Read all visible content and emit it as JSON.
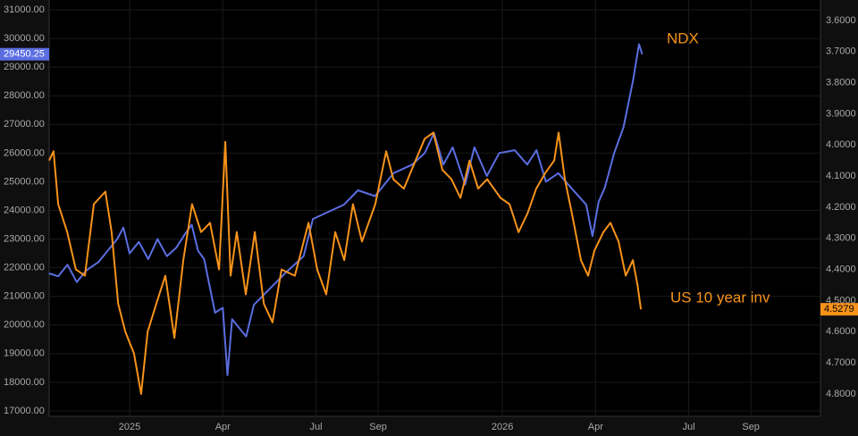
{
  "chart_data": {
    "type": "line",
    "annotations": [
      "NDX",
      "US 10 year inv"
    ],
    "xlim": [
      -2.59,
      22.24
    ],
    "xticks": [
      {
        "value": 0,
        "label": "2025"
      },
      {
        "value": 3,
        "label": "Apr"
      },
      {
        "value": 6,
        "label": "Jul"
      },
      {
        "value": 8,
        "label": "Sep"
      },
      {
        "value": 12,
        "label": "2026"
      },
      {
        "value": 15,
        "label": "Apr"
      },
      {
        "value": 18,
        "label": "Jul"
      },
      {
        "value": 20,
        "label": "Sep"
      }
    ],
    "ylim": [
      16812,
      31343
    ],
    "yticks": [
      {
        "value": 17000,
        "label": "17000.00"
      },
      {
        "value": 18000,
        "label": "18000.00"
      },
      {
        "value": 19000,
        "label": "19000.00"
      },
      {
        "value": 20000,
        "label": "20000.00"
      },
      {
        "value": 21000,
        "label": "21000.00"
      },
      {
        "value": 22000,
        "label": "22000.00"
      },
      {
        "value": 23000,
        "label": "23000.00"
      },
      {
        "value": 24000,
        "label": "24000.00"
      },
      {
        "value": 25000,
        "label": "25000.00"
      },
      {
        "value": 26000,
        "label": "26000.00"
      },
      {
        "value": 27000,
        "label": "27000.00"
      },
      {
        "value": 28000,
        "label": "28000.00"
      },
      {
        "value": 29000,
        "label": "29000.00"
      },
      {
        "value": 30000,
        "label": "30000.00"
      },
      {
        "value": 31000,
        "label": "31000.00"
      }
    ],
    "y2lim": [
      4.872,
      3.534
    ],
    "y2ticks": [
      {
        "value": 3.6,
        "label": "3.6000"
      },
      {
        "value": 3.7,
        "label": "3.7000"
      },
      {
        "value": 3.8,
        "label": "3.8000"
      },
      {
        "value": 3.9,
        "label": "3.9000"
      },
      {
        "value": 4.0,
        "label": "4.0000"
      },
      {
        "value": 4.1,
        "label": "4.1000"
      },
      {
        "value": 4.2,
        "label": "4.2000"
      },
      {
        "value": 4.3,
        "label": "4.3000"
      },
      {
        "value": 4.4,
        "label": "4.4000"
      },
      {
        "value": 4.5,
        "label": "4.5000"
      },
      {
        "value": 4.6,
        "label": "4.6000"
      },
      {
        "value": 4.7,
        "label": "4.7000"
      },
      {
        "value": 4.8,
        "label": "4.8000"
      }
    ],
    "grid": true,
    "series": [
      {
        "name": "NDX",
        "color": "#5b6ee1",
        "last_value": 29450.25,
        "x": [
          -2.6,
          -2.3,
          -2.0,
          -1.7,
          -1.4,
          -1.0,
          -0.7,
          -0.4,
          -0.2,
          0.0,
          0.3,
          0.6,
          0.9,
          1.2,
          1.5,
          1.8,
          2.0,
          2.2,
          2.4,
          2.75,
          3.0,
          3.15,
          3.3,
          3.75,
          4.0,
          4.45,
          5.0,
          5.6,
          5.9,
          6.5,
          6.9,
          7.35,
          7.9,
          8.5,
          9.1,
          9.5,
          9.8,
          10.1,
          10.4,
          10.8,
          11.1,
          11.5,
          11.9,
          12.4,
          12.8,
          13.1,
          13.4,
          13.8,
          14.2,
          14.7,
          14.9,
          15.1,
          15.3,
          15.6,
          15.9,
          16.2,
          16.4,
          16.5
        ],
        "values": [
          21800,
          21700,
          22100,
          21500,
          21900,
          22200,
          22600,
          23000,
          23400,
          22500,
          22900,
          22300,
          23000,
          22400,
          22700,
          23200,
          23500,
          22600,
          22300,
          20430,
          20600,
          18250,
          20200,
          19600,
          20700,
          21200,
          21800,
          22400,
          23700,
          24000,
          24200,
          24700,
          24500,
          25300,
          25600,
          26000,
          26700,
          25600,
          26200,
          24900,
          26200,
          25200,
          26000,
          26100,
          25600,
          26100,
          25000,
          25300,
          24800,
          24200,
          23100,
          24300,
          24800,
          26000,
          26900,
          28500,
          29800,
          29450.25
        ]
      },
      {
        "name": "US 10 year inv",
        "color": "#f7931a",
        "axis": "y2",
        "last_value": 4.5279,
        "x": [
          -2.59,
          -2.45,
          -2.3,
          -2.01,
          -1.73,
          -1.44,
          -1.15,
          -0.78,
          -0.58,
          -0.37,
          -0.14,
          0.14,
          0.37,
          0.58,
          0.86,
          1.15,
          1.44,
          1.73,
          2.01,
          2.3,
          2.59,
          2.88,
          3.08,
          3.25,
          3.45,
          3.74,
          4.03,
          4.32,
          4.6,
          4.89,
          5.32,
          5.76,
          6.04,
          6.33,
          6.62,
          6.91,
          7.19,
          7.48,
          7.91,
          8.26,
          8.49,
          8.83,
          9.12,
          9.5,
          9.78,
          10.07,
          10.36,
          10.65,
          10.94,
          11.22,
          11.51,
          11.94,
          12.23,
          12.52,
          12.81,
          13.09,
          13.38,
          13.67,
          13.81,
          14.01,
          14.24,
          14.53,
          14.76,
          14.96,
          15.25,
          15.48,
          15.74,
          15.97,
          16.2,
          16.35,
          16.46
        ],
        "values": [
          4.05,
          4.02,
          4.19,
          4.28,
          4.4,
          4.42,
          4.19,
          4.15,
          4.28,
          4.51,
          4.6,
          4.67,
          4.8,
          4.6,
          4.51,
          4.42,
          4.62,
          4.37,
          4.19,
          4.28,
          4.25,
          4.4,
          3.99,
          4.42,
          4.28,
          4.48,
          4.28,
          4.51,
          4.57,
          4.4,
          4.42,
          4.25,
          4.4,
          4.48,
          4.28,
          4.37,
          4.19,
          4.31,
          4.19,
          4.02,
          4.11,
          4.14,
          4.07,
          3.98,
          3.96,
          4.08,
          4.11,
          4.17,
          4.05,
          4.14,
          4.11,
          4.17,
          4.19,
          4.28,
          4.22,
          4.14,
          4.09,
          4.05,
          3.96,
          4.11,
          4.22,
          4.37,
          4.42,
          4.34,
          4.28,
          4.25,
          4.31,
          4.42,
          4.37,
          4.45,
          4.5279
        ]
      }
    ]
  }
}
